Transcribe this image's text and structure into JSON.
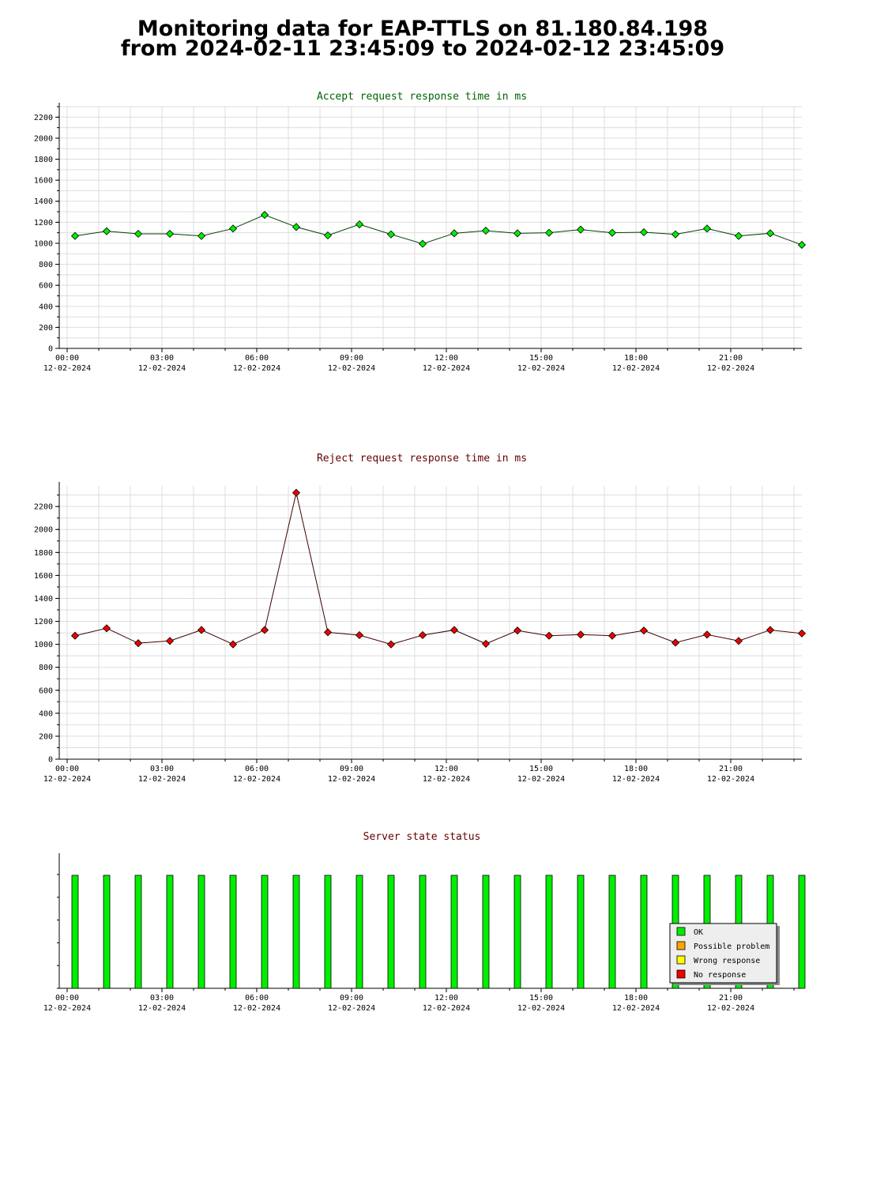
{
  "page": {
    "title_line1": "Monitoring data for EAP-TTLS on 81.180.84.198",
    "title_line2": "from 2024-02-11 23:45:09 to 2024-02-12 23:45:09"
  },
  "colors": {
    "accept_title": "#006400",
    "reject_title": "#640000",
    "status_title": "#640000",
    "accept_point": "#00ee00",
    "reject_point": "#ee0000",
    "accept_line": "#004000",
    "reject_line": "#400000",
    "ok": "#00ee00",
    "possible_problem": "#ffa500",
    "wrong_response": "#ffff00",
    "no_response": "#ee0000",
    "grid": "#dddddd"
  },
  "x_ticks": [
    {
      "time": "00:00",
      "date": "12-02-2024"
    },
    {
      "time": "03:00",
      "date": "12-02-2024"
    },
    {
      "time": "06:00",
      "date": "12-02-2024"
    },
    {
      "time": "09:00",
      "date": "12-02-2024"
    },
    {
      "time": "12:00",
      "date": "12-02-2024"
    },
    {
      "time": "15:00",
      "date": "12-02-2024"
    },
    {
      "time": "18:00",
      "date": "12-02-2024"
    },
    {
      "time": "21:00",
      "date": "12-02-2024"
    }
  ],
  "chart_data": [
    {
      "type": "line",
      "title": "Accept request response time in ms",
      "x": [
        "00:15",
        "01:15",
        "02:15",
        "03:15",
        "04:15",
        "05:15",
        "06:15",
        "07:15",
        "08:15",
        "09:15",
        "10:15",
        "11:15",
        "12:15",
        "13:15",
        "14:15",
        "15:15",
        "16:15",
        "17:15",
        "18:15",
        "19:15",
        "20:15",
        "21:15",
        "22:15",
        "23:15"
      ],
      "values": [
        1070,
        1115,
        1090,
        1090,
        1070,
        1140,
        1270,
        1155,
        1075,
        1180,
        1085,
        995,
        1095,
        1120,
        1095,
        1100,
        1130,
        1100,
        1105,
        1085,
        1140,
        1070,
        1095,
        985
      ],
      "ylim": [
        0,
        2300
      ],
      "yticks": [
        0,
        200,
        400,
        600,
        800,
        1000,
        1200,
        1400,
        1600,
        1800,
        2000,
        2200
      ],
      "grid": true,
      "xlim_hours": [
        -0.25,
        23.25
      ]
    },
    {
      "type": "line",
      "title": "Reject request response time in ms",
      "x": [
        "00:15",
        "01:15",
        "02:15",
        "03:15",
        "04:15",
        "05:15",
        "06:15",
        "07:15",
        "08:15",
        "09:15",
        "10:15",
        "11:15",
        "12:15",
        "13:15",
        "14:15",
        "15:15",
        "16:15",
        "17:15",
        "18:15",
        "19:15",
        "20:15",
        "21:15",
        "22:15",
        "23:15"
      ],
      "values": [
        1075,
        1140,
        1010,
        1030,
        1125,
        1000,
        1125,
        2320,
        1105,
        1080,
        1000,
        1080,
        1125,
        1005,
        1120,
        1075,
        1085,
        1075,
        1120,
        1015,
        1085,
        1030,
        1125,
        1095
      ],
      "ylim": [
        0,
        2380
      ],
      "yticks": [
        0,
        200,
        400,
        600,
        800,
        1000,
        1200,
        1400,
        1600,
        1800,
        2000,
        2200
      ],
      "grid": true,
      "xlim_hours": [
        -0.25,
        23.25
      ]
    },
    {
      "type": "bar",
      "title": "Server state status",
      "x": [
        "00:15",
        "01:15",
        "02:15",
        "03:15",
        "04:15",
        "05:15",
        "06:15",
        "07:15",
        "08:15",
        "09:15",
        "10:15",
        "11:15",
        "12:15",
        "13:15",
        "14:15",
        "15:15",
        "16:15",
        "17:15",
        "18:15",
        "19:15",
        "20:15",
        "21:15",
        "22:15",
        "23:15"
      ],
      "status": [
        "OK",
        "OK",
        "OK",
        "OK",
        "OK",
        "OK",
        "OK",
        "OK",
        "OK",
        "OK",
        "OK",
        "OK",
        "OK",
        "OK",
        "OK",
        "OK",
        "OK",
        "OK",
        "OK",
        "OK",
        "OK",
        "OK",
        "OK",
        "OK"
      ],
      "legend": [
        "OK",
        "Possible problem",
        "Wrong response",
        "No response"
      ],
      "legend_position": "bottom-right",
      "grid": false,
      "xlim_hours": [
        -0.25,
        23.25
      ]
    }
  ]
}
